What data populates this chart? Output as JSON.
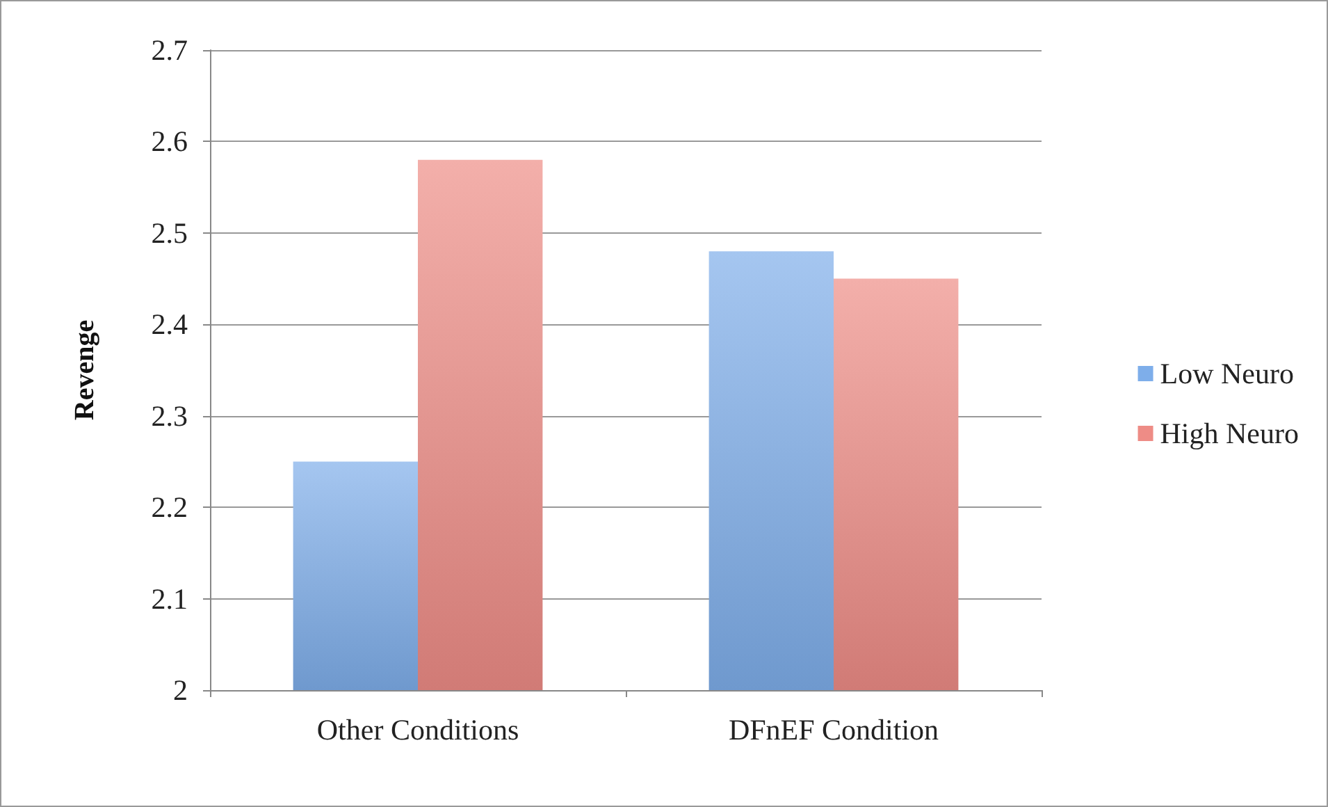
{
  "chart_data": {
    "type": "bar",
    "ylabel": "Revenge",
    "categories": [
      "Other Conditions",
      "DFnEF Condition"
    ],
    "series": [
      {
        "name": "Low Neuro",
        "color": "#7eaeea",
        "values": [
          2.25,
          2.48
        ]
      },
      {
        "name": "High Neuro",
        "color": "#ee8c86",
        "values": [
          2.58,
          2.45
        ]
      }
    ],
    "ylim": [
      2,
      2.7
    ],
    "yticks": [
      2,
      2.1,
      2.2,
      2.3,
      2.4,
      2.5,
      2.6,
      2.7
    ],
    "grid": "y",
    "legend": "right"
  }
}
